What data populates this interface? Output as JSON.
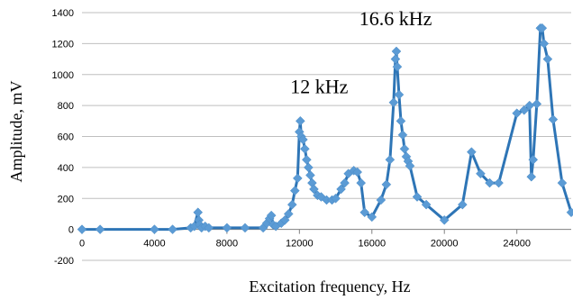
{
  "chart_data": {
    "type": "line",
    "title": "",
    "xlabel": "Excitation frequency, Hz",
    "ylabel": "Amplitude, mV",
    "xlim": [
      0,
      27000
    ],
    "ylim": [
      -200,
      1400
    ],
    "x_ticks": [
      "0",
      "4000",
      "8000",
      "12000",
      "16000",
      "20000",
      "24000"
    ],
    "y_ticks": [
      "-200",
      "0",
      "200",
      "400",
      "600",
      "800",
      "1000",
      "1200",
      "1400"
    ],
    "grid": "horizontal",
    "legend": "none",
    "annotations": [
      {
        "text": "12 kHz",
        "x": 11500,
        "y": 880
      },
      {
        "text": "16.6 kHz",
        "x": 15300,
        "y": 1320
      }
    ],
    "series": [
      {
        "color": "#2e75b6",
        "marker": "diamond",
        "points": [
          [
            0,
            0
          ],
          [
            1000,
            0
          ],
          [
            4000,
            0
          ],
          [
            5000,
            0
          ],
          [
            6000,
            10
          ],
          [
            6200,
            20
          ],
          [
            6400,
            110
          ],
          [
            6450,
            60
          ],
          [
            6500,
            30
          ],
          [
            6600,
            10
          ],
          [
            6800,
            20
          ],
          [
            7000,
            10
          ],
          [
            8000,
            10
          ],
          [
            9000,
            10
          ],
          [
            10000,
            10
          ],
          [
            10200,
            40
          ],
          [
            10350,
            70
          ],
          [
            10450,
            90
          ],
          [
            10550,
            30
          ],
          [
            10700,
            20
          ],
          [
            11000,
            40
          ],
          [
            11200,
            60
          ],
          [
            11400,
            100
          ],
          [
            11600,
            160
          ],
          [
            11750,
            250
          ],
          [
            11900,
            330
          ],
          [
            12000,
            630
          ],
          [
            12050,
            700
          ],
          [
            12100,
            600
          ],
          [
            12200,
            580
          ],
          [
            12300,
            520
          ],
          [
            12400,
            450
          ],
          [
            12500,
            400
          ],
          [
            12600,
            350
          ],
          [
            12700,
            300
          ],
          [
            12800,
            260
          ],
          [
            13000,
            220
          ],
          [
            13200,
            210
          ],
          [
            13500,
            190
          ],
          [
            13800,
            190
          ],
          [
            14000,
            200
          ],
          [
            14300,
            260
          ],
          [
            14500,
            300
          ],
          [
            14700,
            360
          ],
          [
            15000,
            380
          ],
          [
            15200,
            370
          ],
          [
            15400,
            300
          ],
          [
            15600,
            110
          ],
          [
            16000,
            80
          ],
          [
            16500,
            190
          ],
          [
            16800,
            290
          ],
          [
            17000,
            450
          ],
          [
            17200,
            820
          ],
          [
            17300,
            1100
          ],
          [
            17350,
            1150
          ],
          [
            17400,
            1050
          ],
          [
            17500,
            870
          ],
          [
            17600,
            700
          ],
          [
            17700,
            610
          ],
          [
            17800,
            520
          ],
          [
            17900,
            470
          ],
          [
            18000,
            440
          ],
          [
            18100,
            410
          ],
          [
            18500,
            210
          ],
          [
            19000,
            160
          ],
          [
            20000,
            60
          ],
          [
            21000,
            160
          ],
          [
            21500,
            500
          ],
          [
            22000,
            360
          ],
          [
            22500,
            300
          ],
          [
            23000,
            300
          ],
          [
            24000,
            750
          ],
          [
            24400,
            770
          ],
          [
            24700,
            800
          ],
          [
            24800,
            340
          ],
          [
            24900,
            450
          ],
          [
            25100,
            810
          ],
          [
            25300,
            1300
          ],
          [
            25400,
            1300
          ],
          [
            25500,
            1200
          ],
          [
            25700,
            1100
          ],
          [
            26000,
            710
          ],
          [
            26500,
            300
          ],
          [
            27000,
            110
          ]
        ]
      }
    ]
  }
}
